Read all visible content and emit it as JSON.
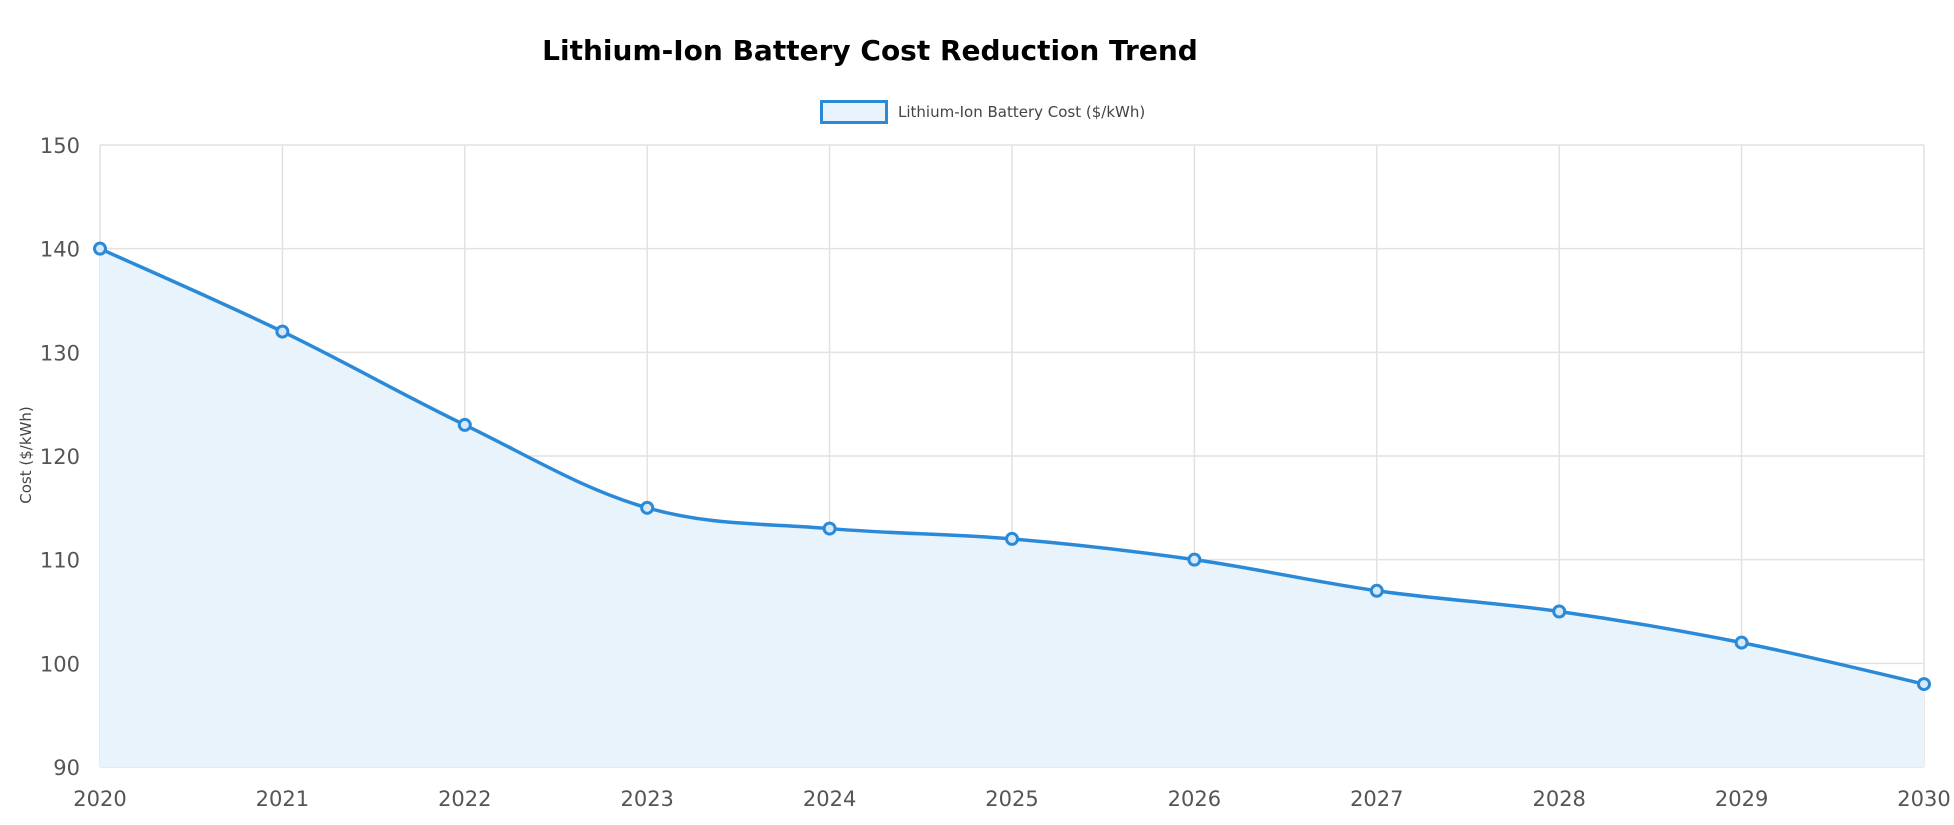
{
  "chart_data": {
    "type": "line",
    "title": "Lithium-Ion Battery Cost Reduction Trend",
    "xlabel": "",
    "ylabel": "Cost ($/kWh)",
    "x": [
      "2020",
      "2021",
      "2022",
      "2023",
      "2024",
      "2025",
      "2026",
      "2027",
      "2028",
      "2029",
      "2030"
    ],
    "ylim": [
      90,
      150
    ],
    "yticks": [
      90,
      100,
      110,
      120,
      130,
      140,
      150
    ],
    "grid": true,
    "legend": "top-center",
    "fill": true,
    "series": [
      {
        "name": "Lithium-Ion Battery Cost ($/kWh)",
        "values": [
          140,
          132,
          123,
          115,
          113,
          112,
          110,
          107,
          105,
          102,
          98
        ]
      }
    ],
    "colors": {
      "line": "#2b8ad8",
      "fill": "#e9f3fb",
      "grid": "#e2e2e2"
    }
  }
}
